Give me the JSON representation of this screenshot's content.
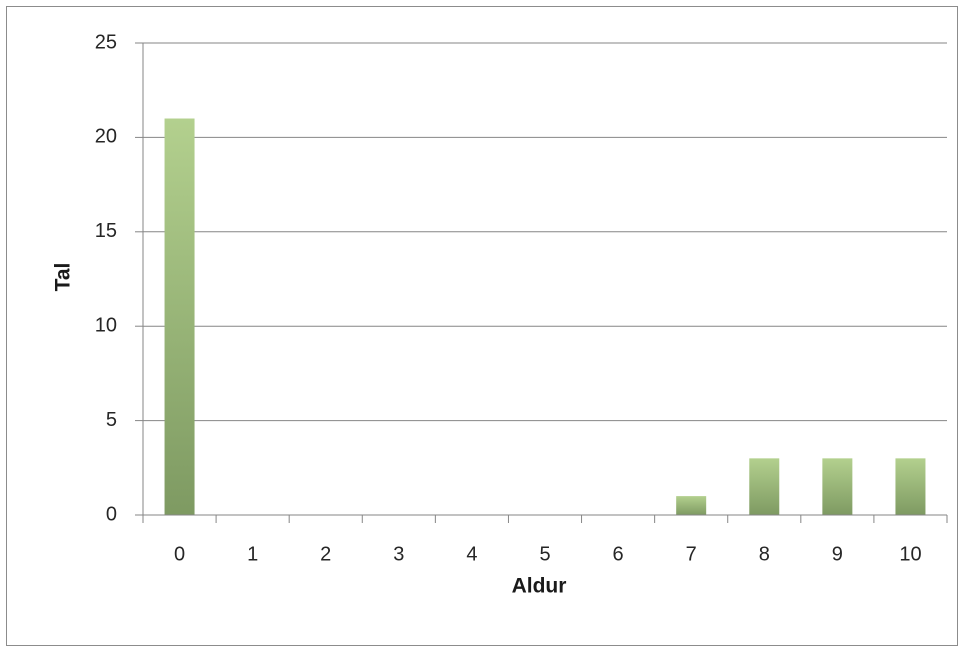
{
  "chart_data": {
    "type": "bar",
    "categories": [
      "0",
      "1",
      "2",
      "3",
      "4",
      "5",
      "6",
      "7",
      "8",
      "9",
      "10"
    ],
    "values": [
      21,
      0,
      0,
      0,
      0,
      0,
      0,
      1,
      3,
      3,
      3
    ],
    "title": "",
    "xlabel": "Aldur",
    "ylabel": "Tal",
    "ylim": [
      0,
      25
    ],
    "yticks": [
      "0",
      "5",
      "10",
      "15",
      "20",
      "25"
    ],
    "grid": true,
    "legend": "none",
    "colors": {
      "bar_top": "#b3d08e",
      "bar_bottom": "#7e9a62",
      "grid": "#868686",
      "axis": "#868686"
    }
  }
}
